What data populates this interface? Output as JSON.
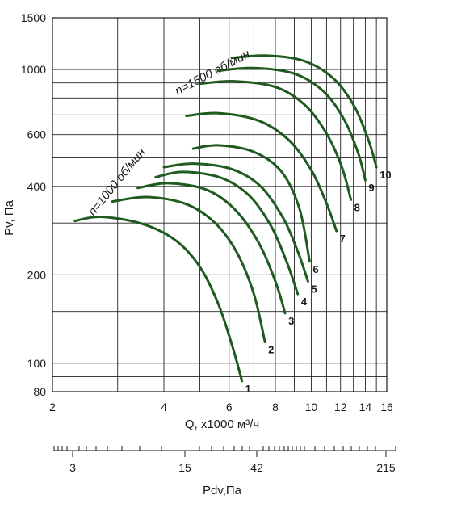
{
  "chart_data": {
    "type": "line",
    "scale": "log-log",
    "grid": true,
    "legend": "none",
    "curve_color": "#1f5a1f",
    "x_axis": {
      "label": "Q, x1000 м³/ч",
      "range": [
        2,
        16
      ],
      "ticks": [
        2,
        4,
        6,
        8,
        10,
        12,
        14,
        16
      ],
      "tick_labels": [
        "2",
        "4",
        "6",
        "8",
        "10",
        "12",
        "14",
        "16"
      ]
    },
    "y_axis": {
      "label": "Pv, Па",
      "range": [
        80,
        1500
      ],
      "ticks": [
        80,
        100,
        200,
        400,
        600,
        1000,
        1500
      ],
      "tick_labels": [
        "80",
        "100",
        "200",
        "400",
        "600",
        "1000",
        "1500"
      ]
    },
    "pdv_axis": {
      "label": "Pdv,Па",
      "tick_labels": [
        "3",
        "15",
        "42",
        "215"
      ]
    },
    "annotations": [
      "n=1000 об/мин",
      "n=1500 об/мин"
    ],
    "series": [
      {
        "name": "1",
        "x": [
          2.3,
          2.7,
          3.5,
          4.3,
          5.0,
          5.6,
          6.1,
          6.5
        ],
        "y": [
          305,
          315,
          298,
          262,
          213,
          160,
          116,
          87
        ]
      },
      {
        "name": "2",
        "x": [
          2.9,
          3.6,
          4.6,
          5.5,
          6.3,
          7.0,
          7.5
        ],
        "y": [
          355,
          368,
          348,
          300,
          238,
          172,
          118
        ]
      },
      {
        "name": "3",
        "x": [
          3.4,
          4.1,
          5.2,
          6.2,
          7.2,
          8.0,
          8.5
        ],
        "y": [
          395,
          410,
          390,
          335,
          258,
          190,
          148
        ]
      },
      {
        "name": "4",
        "x": [
          3.8,
          4.5,
          5.7,
          6.8,
          7.8,
          8.6,
          9.2
        ],
        "y": [
          430,
          448,
          428,
          372,
          292,
          220,
          172
        ]
      },
      {
        "name": "5",
        "x": [
          4.0,
          4.8,
          6.1,
          7.3,
          8.4,
          9.2,
          9.8
        ],
        "y": [
          465,
          478,
          458,
          400,
          312,
          240,
          190
        ]
      },
      {
        "name": "6",
        "x": [
          4.8,
          5.6,
          7.0,
          8.3,
          9.3,
          9.9
        ],
        "y": [
          538,
          552,
          524,
          450,
          335,
          222
        ]
      },
      {
        "name": "7",
        "x": [
          4.6,
          5.6,
          7.2,
          8.7,
          10.0,
          11.0,
          11.7
        ],
        "y": [
          695,
          710,
          670,
          575,
          455,
          350,
          282
        ]
      },
      {
        "name": "8",
        "x": [
          5.0,
          6.2,
          8.0,
          9.6,
          11.0,
          12.1,
          12.8
        ],
        "y": [
          895,
          912,
          872,
          758,
          605,
          465,
          360
        ]
      },
      {
        "name": "9",
        "x": [
          5.6,
          7.0,
          9.0,
          10.8,
          12.3,
          13.4,
          14.0
        ],
        "y": [
          990,
          1012,
          968,
          842,
          672,
          518,
          420
        ]
      },
      {
        "name": "10",
        "x": [
          6.1,
          7.6,
          9.6,
          11.5,
          13.1,
          14.3,
          15.0
        ],
        "y": [
          1095,
          1115,
          1068,
          930,
          745,
          572,
          465
        ]
      }
    ]
  }
}
